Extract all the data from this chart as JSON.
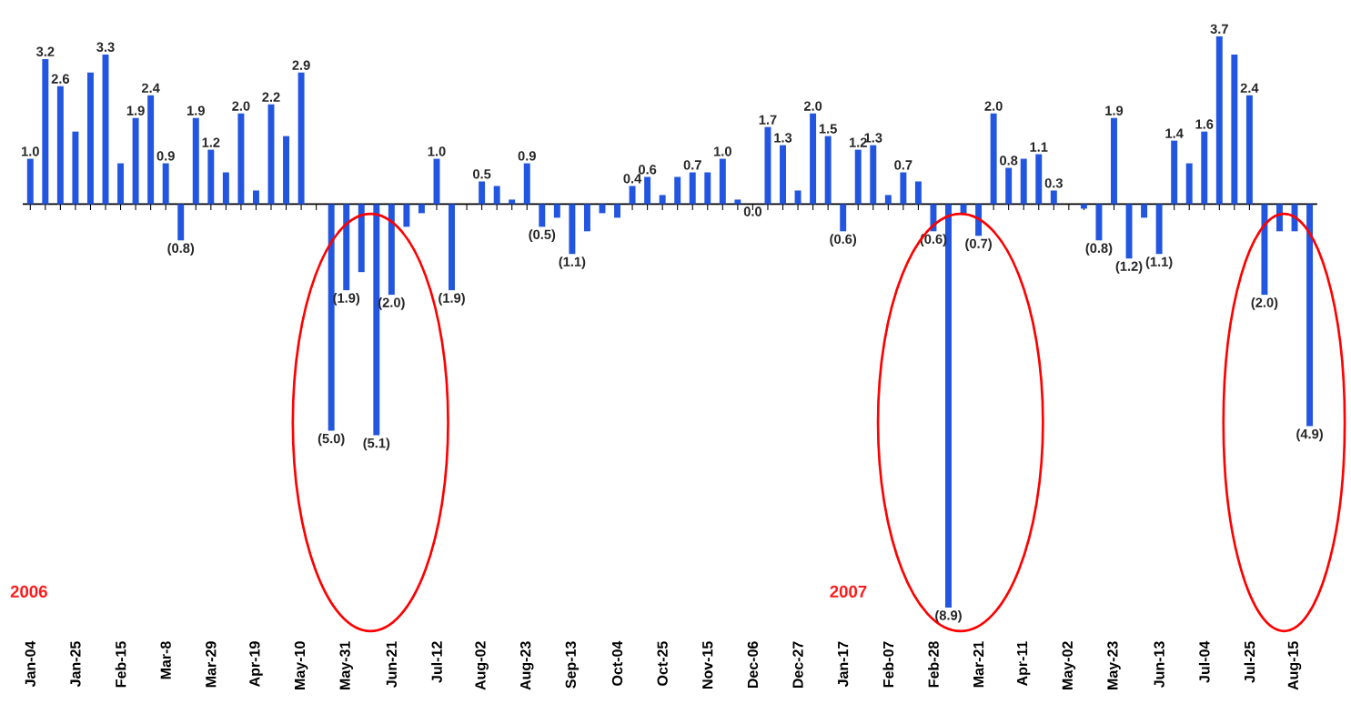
{
  "chart_data": {
    "type": "bar",
    "categories": [
      "Jan-04",
      null,
      null,
      "Jan-25",
      null,
      null,
      "Feb-15",
      null,
      null,
      "Mar-8",
      null,
      null,
      "Mar-29",
      null,
      null,
      "Apr-19",
      null,
      null,
      "May-10",
      null,
      null,
      "May-31",
      null,
      null,
      "Jun-21",
      null,
      null,
      "Jul-12",
      null,
      null,
      "Aug-02",
      null,
      null,
      "Aug-23",
      null,
      null,
      "Sep-13",
      null,
      null,
      "Oct-04",
      null,
      null,
      "Oct-25",
      null,
      null,
      "Nov-15",
      null,
      null,
      "Dec-06",
      null,
      null,
      "Dec-27",
      null,
      null,
      "Jan-17",
      null,
      null,
      "Feb-07",
      null,
      null,
      "Feb-28",
      null,
      null,
      "Mar-21",
      null,
      null,
      "Apr-11",
      null,
      null,
      "May-02",
      null,
      null,
      "May-23",
      null,
      null,
      "Jun-13",
      null,
      null,
      "Jul-04",
      null,
      null,
      "Jul-25",
      null,
      null,
      "Aug-15",
      null
    ],
    "values": [
      1.0,
      3.2,
      2.6,
      1.6,
      2.9,
      3.3,
      0.9,
      1.9,
      2.4,
      0.9,
      -0.8,
      1.9,
      1.2,
      0.7,
      2.0,
      0.3,
      2.2,
      1.5,
      2.9,
      0.0,
      -5.0,
      -1.9,
      -1.5,
      -5.1,
      -2.0,
      -0.5,
      -0.2,
      1.0,
      -1.9,
      0.0,
      0.5,
      0.4,
      0.1,
      0.9,
      -0.5,
      -0.3,
      -1.1,
      -0.6,
      -0.2,
      -0.3,
      0.4,
      0.6,
      0.2,
      0.6,
      0.7,
      0.7,
      1.0,
      0.1,
      0.0,
      1.7,
      1.3,
      0.3,
      2.0,
      1.5,
      -0.6,
      1.2,
      1.3,
      0.2,
      0.7,
      0.5,
      -0.6,
      -8.9,
      -0.2,
      -0.7,
      2.0,
      0.8,
      1.0,
      1.1,
      0.3,
      0.0,
      -0.1,
      -0.8,
      1.9,
      -1.2,
      -0.3,
      -1.1,
      1.4,
      0.9,
      1.6,
      3.7,
      3.3,
      2.4,
      -2.0,
      -0.6,
      -0.6,
      -4.9
    ],
    "value_labels": [
      "1.0",
      "3.2",
      "2.6",
      null,
      null,
      "3.3",
      null,
      "1.9",
      "2.4",
      "0.9",
      "(0.8)",
      "1.9",
      "1.2",
      null,
      "2.0",
      null,
      "2.2",
      null,
      "2.9",
      null,
      "(5.0)",
      "(1.9)",
      null,
      "(5.1)",
      "(2.0)",
      null,
      null,
      "1.0",
      "(1.9)",
      null,
      "0.5",
      null,
      null,
      "0.9",
      "(0.5)",
      null,
      "(1.1)",
      null,
      null,
      null,
      "0.4",
      "0.6",
      null,
      null,
      "0.7",
      null,
      "1.0",
      null,
      "0.0",
      "1.7",
      "1.3",
      null,
      "2.0",
      "1.5",
      "(0.6)",
      "1.2",
      "1.3",
      null,
      "0.7",
      null,
      "(0.6)",
      "(8.9)",
      null,
      "(0.7)",
      "2.0",
      "0.8",
      null,
      "1.1",
      "0.3",
      null,
      null,
      "(0.8)",
      "1.9",
      "(1.2)",
      null,
      "(1.1)",
      "1.4",
      null,
      "1.6",
      "3.7",
      null,
      "2.4",
      "(2.0)",
      null,
      null,
      "(4.9)"
    ],
    "color": "#2255e0",
    "ylim": [
      -8.9,
      3.7
    ],
    "tick_labels": "x",
    "annotations": [
      "2006",
      "2007"
    ]
  }
}
